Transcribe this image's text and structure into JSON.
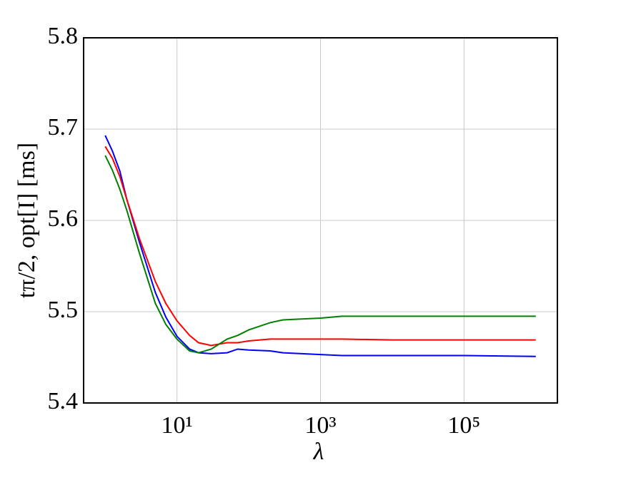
{
  "chart_data": {
    "type": "line",
    "x_label": "λ",
    "y_label": "tπ/2, opt[I] [ms]",
    "x": [
      1,
      1.26,
      1.6,
      2,
      3,
      5,
      7,
      10,
      15,
      20,
      30,
      50,
      70,
      100,
      200,
      300,
      1000,
      2000,
      10000,
      100000,
      1000000
    ],
    "series": [
      {
        "color": "#0000ff",
        "values": [
          5.693,
          5.676,
          5.654,
          5.623,
          5.576,
          5.521,
          5.494,
          5.473,
          5.459,
          5.455,
          5.454,
          5.455,
          5.459,
          5.458,
          5.457,
          5.455,
          5.453,
          5.452,
          5.452,
          5.452,
          5.451
        ]
      },
      {
        "color": "#ff0000",
        "values": [
          5.681,
          5.668,
          5.648,
          5.623,
          5.58,
          5.533,
          5.509,
          5.49,
          5.474,
          5.466,
          5.463,
          5.466,
          5.466,
          5.468,
          5.47,
          5.47,
          5.47,
          5.47,
          5.469,
          5.469,
          5.469
        ]
      },
      {
        "color": "#008000",
        "values": [
          5.671,
          5.655,
          5.634,
          5.611,
          5.564,
          5.509,
          5.486,
          5.47,
          5.457,
          5.455,
          5.459,
          5.47,
          5.474,
          5.48,
          5.488,
          5.491,
          5.493,
          5.495,
          5.495,
          5.495,
          5.495
        ]
      }
    ],
    "xscale": "log",
    "xlim": [
      0.5,
      2000000
    ],
    "xticks": [
      {
        "value": 10,
        "label": "10¹"
      },
      {
        "value": 1000,
        "label": "10³"
      },
      {
        "value": 100000,
        "label": "10⁵"
      }
    ],
    "ylim": [
      5.4,
      5.8
    ],
    "yticks": [
      5.4,
      5.5,
      5.6,
      5.7,
      5.8
    ],
    "grid": true
  }
}
